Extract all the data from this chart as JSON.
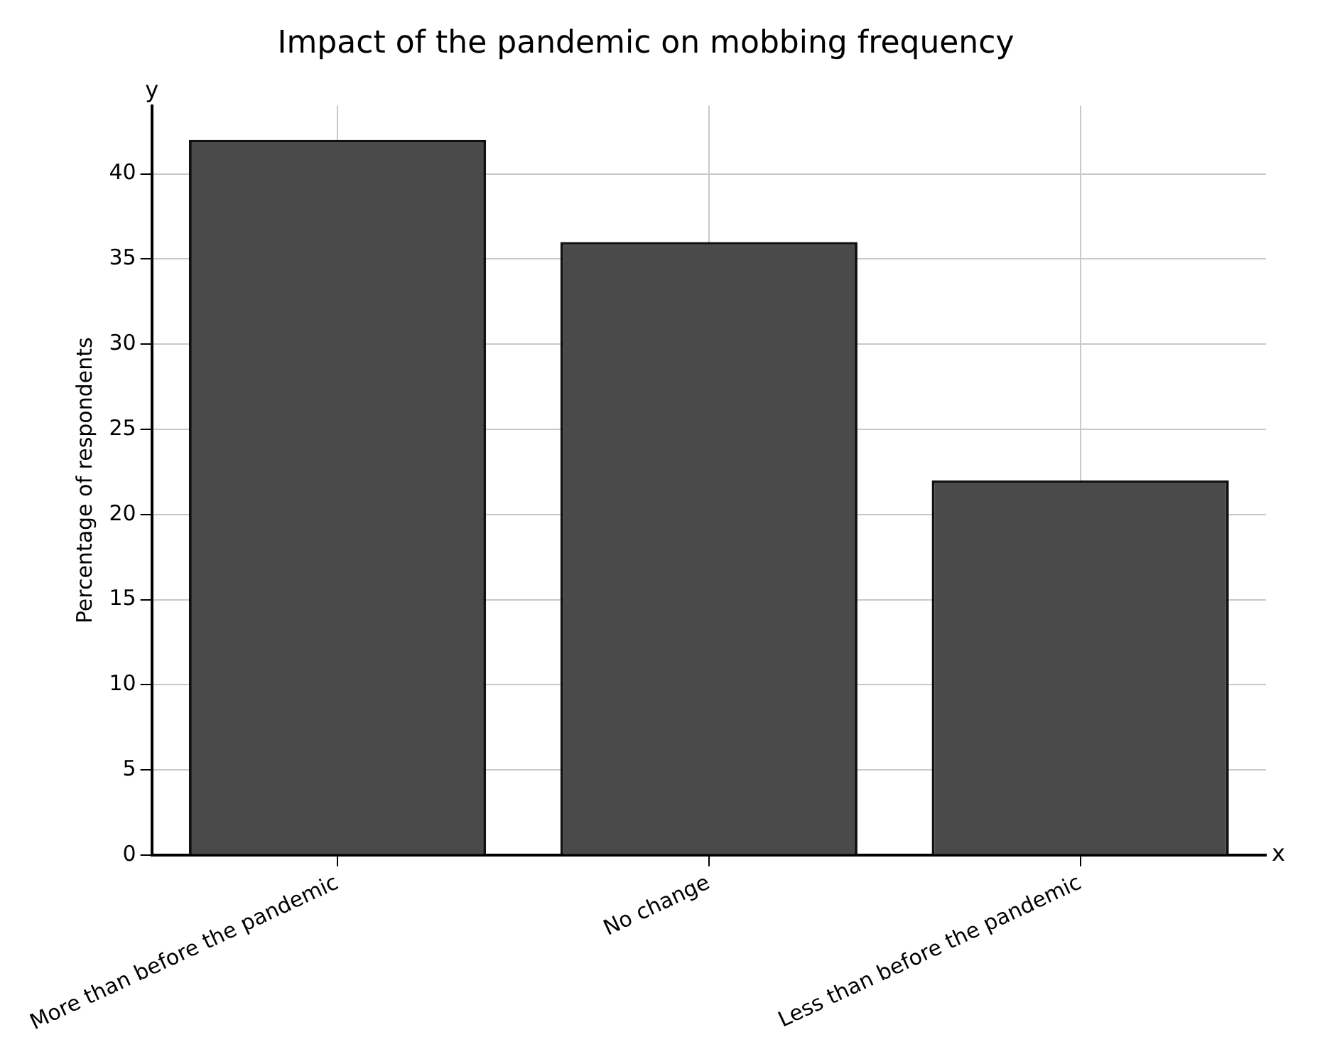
{
  "chart_data": {
    "type": "bar",
    "title": "Impact of the pandemic on mobbing frequency",
    "ylabel": "Percentage of respondents",
    "categories": [
      "More than before the pandemic",
      "No change",
      "Less than before the pandemic"
    ],
    "values": [
      42,
      36,
      22
    ],
    "color": "#4a4a4a",
    "ylim": [
      0,
      44
    ],
    "yticks": [
      0,
      5,
      10,
      15,
      20,
      25,
      30,
      35,
      40
    ],
    "grid": true,
    "legend": false,
    "annotations": [
      "y",
      "x"
    ]
  }
}
